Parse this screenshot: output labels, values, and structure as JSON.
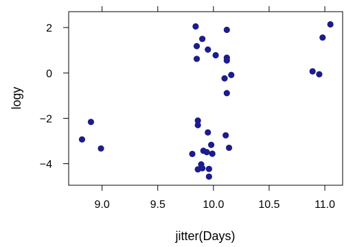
{
  "chart_data": {
    "type": "scatter",
    "xlabel": "jitter(Days)",
    "ylabel": "logy",
    "xlim": [
      8.7,
      11.16
    ],
    "ylim": [
      -4.95,
      2.7
    ],
    "xticks": [
      9.0,
      9.5,
      10.0,
      10.5,
      11.0
    ],
    "xtick_labels": [
      "9.0",
      "9.5",
      "10.0",
      "10.5",
      "11.0"
    ],
    "yticks": [
      2,
      0,
      -2,
      -4
    ],
    "ytick_labels": [
      "2",
      "0",
      "−2",
      "−4"
    ],
    "grid": false,
    "point_color": "#1c1c8c",
    "series": [
      {
        "points": [
          {
            "x": 8.82,
            "y": -2.93
          },
          {
            "x": 8.9,
            "y": -2.16
          },
          {
            "x": 8.99,
            "y": -3.33
          },
          {
            "x": 9.84,
            "y": 2.05
          },
          {
            "x": 9.85,
            "y": 1.18
          },
          {
            "x": 9.85,
            "y": 0.62
          },
          {
            "x": 9.9,
            "y": 1.5
          },
          {
            "x": 9.95,
            "y": 1.03
          },
          {
            "x": 10.02,
            "y": 0.78
          },
          {
            "x": 10.12,
            "y": 1.9
          },
          {
            "x": 10.12,
            "y": 0.67
          },
          {
            "x": 10.12,
            "y": 0.55
          },
          {
            "x": 10.16,
            "y": -0.09
          },
          {
            "x": 10.1,
            "y": -0.24
          },
          {
            "x": 10.12,
            "y": -0.89
          },
          {
            "x": 10.89,
            "y": 0.07
          },
          {
            "x": 10.95,
            "y": -0.06
          },
          {
            "x": 10.98,
            "y": 1.56
          },
          {
            "x": 11.05,
            "y": 2.14
          },
          {
            "x": 9.86,
            "y": -2.1
          },
          {
            "x": 9.86,
            "y": -2.3
          },
          {
            "x": 9.95,
            "y": -2.62
          },
          {
            "x": 10.11,
            "y": -2.75
          },
          {
            "x": 10.14,
            "y": -3.3
          },
          {
            "x": 9.98,
            "y": -3.17
          },
          {
            "x": 9.91,
            "y": -3.43
          },
          {
            "x": 9.94,
            "y": -3.49
          },
          {
            "x": 9.99,
            "y": -3.56
          },
          {
            "x": 9.81,
            "y": -3.57
          },
          {
            "x": 9.89,
            "y": -4.03
          },
          {
            "x": 9.86,
            "y": -4.25
          },
          {
            "x": 9.9,
            "y": -4.2
          },
          {
            "x": 9.96,
            "y": -4.23
          },
          {
            "x": 9.96,
            "y": -4.57
          }
        ]
      }
    ]
  }
}
